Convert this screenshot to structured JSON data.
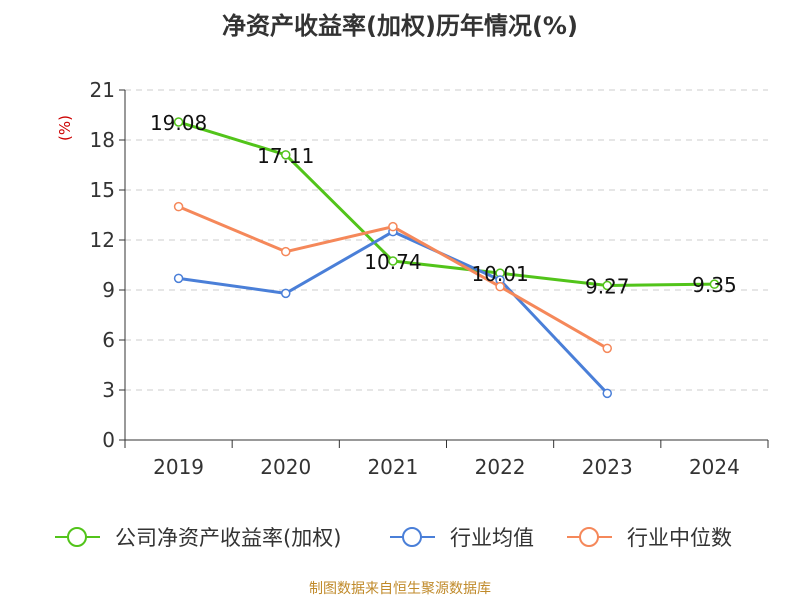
{
  "chart_data": {
    "type": "line",
    "title": "净资产收益率(加权)历年情况(%)",
    "ylabel": "(%)",
    "categories": [
      "2019",
      "2020",
      "2021",
      "2022",
      "2023",
      "2024"
    ],
    "ylim": [
      0,
      21
    ],
    "yticks": [
      "0",
      "3",
      "6",
      "9",
      "12",
      "15",
      "18",
      "21"
    ],
    "grid": true,
    "legend_position": "bottom",
    "series": [
      {
        "name": "公司净资产收益率(加权)",
        "color": "#52c41a",
        "values": [
          19.08,
          17.11,
          10.74,
          10.01,
          9.27,
          9.35
        ],
        "labels": [
          "19.08",
          "17.11",
          "10.74",
          "10.01",
          "9.27",
          "9.35"
        ]
      },
      {
        "name": "行业均值",
        "color": "#4a7fd8",
        "values": [
          9.7,
          8.8,
          12.5,
          9.6,
          2.8,
          null
        ]
      },
      {
        "name": "行业中位数",
        "color": "#f5885a",
        "values": [
          14.0,
          11.3,
          12.8,
          9.2,
          5.5,
          null
        ]
      }
    ]
  },
  "source": "制图数据来自恒生聚源数据库"
}
